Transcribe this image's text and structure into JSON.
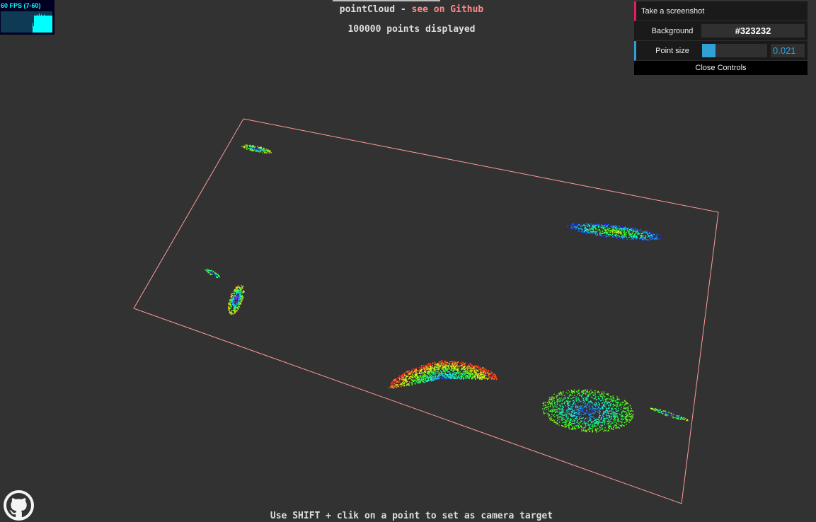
{
  "header": {
    "app_name": "pointCloud -",
    "github_link": "see on Github",
    "points_displayed": "100000 points displayed"
  },
  "stats": {
    "fps_label": "60 FPS (7-60)",
    "fps_history": [
      0,
      0,
      0,
      0,
      0,
      0,
      0,
      0,
      0,
      0,
      0,
      0,
      0,
      0,
      0,
      0,
      0,
      0,
      0,
      0,
      0,
      0,
      0,
      0,
      0,
      0,
      0,
      0,
      0,
      0,
      0,
      0,
      0,
      0,
      0,
      0,
      0,
      0,
      0,
      0,
      0,
      0,
      0,
      0,
      0,
      0.45,
      0.3,
      0.8,
      0.8,
      0.8,
      0.8,
      0.85,
      0.8,
      0.8,
      0.9,
      0.8,
      0.8,
      0.85,
      0.8,
      0.8,
      0.8,
      0.85,
      0.8,
      0.8,
      0.8,
      0.8,
      0.8,
      0.8,
      0.8,
      0.8,
      0.8,
      0.8,
      0.8
    ],
    "colors": {
      "text": "#00ffff",
      "bg": "#000022",
      "graph_bg": "#0e3a55",
      "bar": "#00ffff"
    }
  },
  "controls": {
    "screenshot_label": "Take a screenshot",
    "background_label": "Background",
    "background_value": "#323232",
    "point_size_label": "Point size",
    "point_size_value": "0.021",
    "point_size_fraction": 0.21,
    "close_label": "Close Controls",
    "colors": {
      "function": "#e61d5f",
      "number": "#2fa1d6",
      "panel": "#1a1a1a"
    }
  },
  "footer": {
    "hint": "Use SHIFT + clik on a point to set as camera target"
  },
  "scene": {
    "bounding_box_color": "#ff9a9a",
    "background": "#323232",
    "github_icon": "github-octocat-icon"
  }
}
